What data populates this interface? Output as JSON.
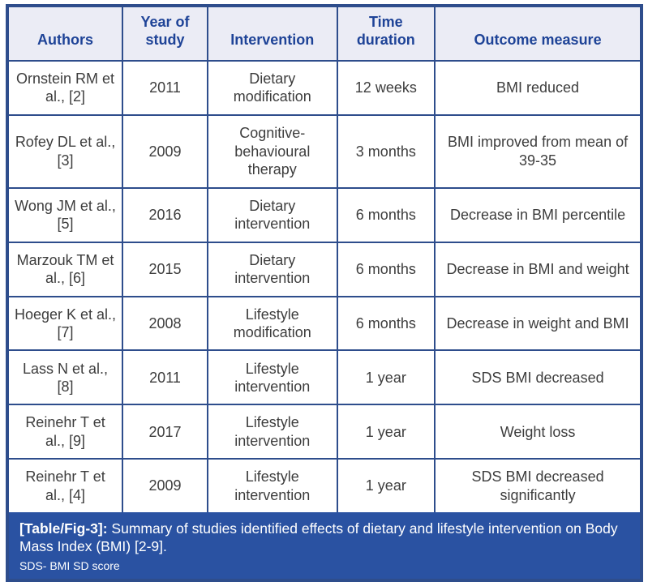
{
  "table": {
    "columns": [
      {
        "key": "authors",
        "label": "Authors"
      },
      {
        "key": "year",
        "label": "Year of study"
      },
      {
        "key": "intervention",
        "label": "Intervention"
      },
      {
        "key": "duration",
        "label": "Time duration"
      },
      {
        "key": "outcome",
        "label": "Outcome measure"
      }
    ],
    "rows": [
      {
        "authors": "Ornstein RM et al., [2]",
        "year": "2011",
        "intervention": "Dietary modification",
        "duration": "12 weeks",
        "outcome": "BMI reduced"
      },
      {
        "authors": "Rofey DL et al., [3]",
        "year": "2009",
        "intervention": "Cognitive-behavioural therapy",
        "duration": "3 months",
        "outcome": "BMI improved from mean of 39-35"
      },
      {
        "authors": "Wong JM et al., [5]",
        "year": "2016",
        "intervention": "Dietary intervention",
        "duration": "6 months",
        "outcome": "Decrease in BMI percentile"
      },
      {
        "authors": "Marzouk TM et al., [6]",
        "year": "2015",
        "intervention": "Dietary intervention",
        "duration": "6 months",
        "outcome": "Decrease in BMI and weight"
      },
      {
        "authors": "Hoeger K et al., [7]",
        "year": "2008",
        "intervention": "Lifestyle modification",
        "duration": "6 months",
        "outcome": "Decrease in weight and BMI"
      },
      {
        "authors": "Lass N et al., [8]",
        "year": "2011",
        "intervention": "Lifestyle intervention",
        "duration": "1 year",
        "outcome": "SDS BMI decreased"
      },
      {
        "authors": "Reinehr T et al., [9]",
        "year": "2017",
        "intervention": "Lifestyle intervention",
        "duration": "1 year",
        "outcome": "Weight loss"
      },
      {
        "authors": "Reinehr T et al., [4]",
        "year": "2009",
        "intervention": "Lifestyle intervention",
        "duration": "1 year",
        "outcome": "SDS BMI decreased significantly"
      }
    ]
  },
  "caption": {
    "label": "[Table/Fig-3]:",
    "text": " Summary of studies identified effects of dietary and lifestyle intervention on Body Mass Index (BMI) [2-9].",
    "footnote": "SDS- BMI SD score"
  },
  "colors": {
    "border_navy": "#2e4d8c",
    "header_background": "#ebecf5",
    "header_text": "#1e4397",
    "body_text": "#3d3d3d",
    "caption_background": "#2a52a2",
    "caption_text": "#ffffff"
  }
}
